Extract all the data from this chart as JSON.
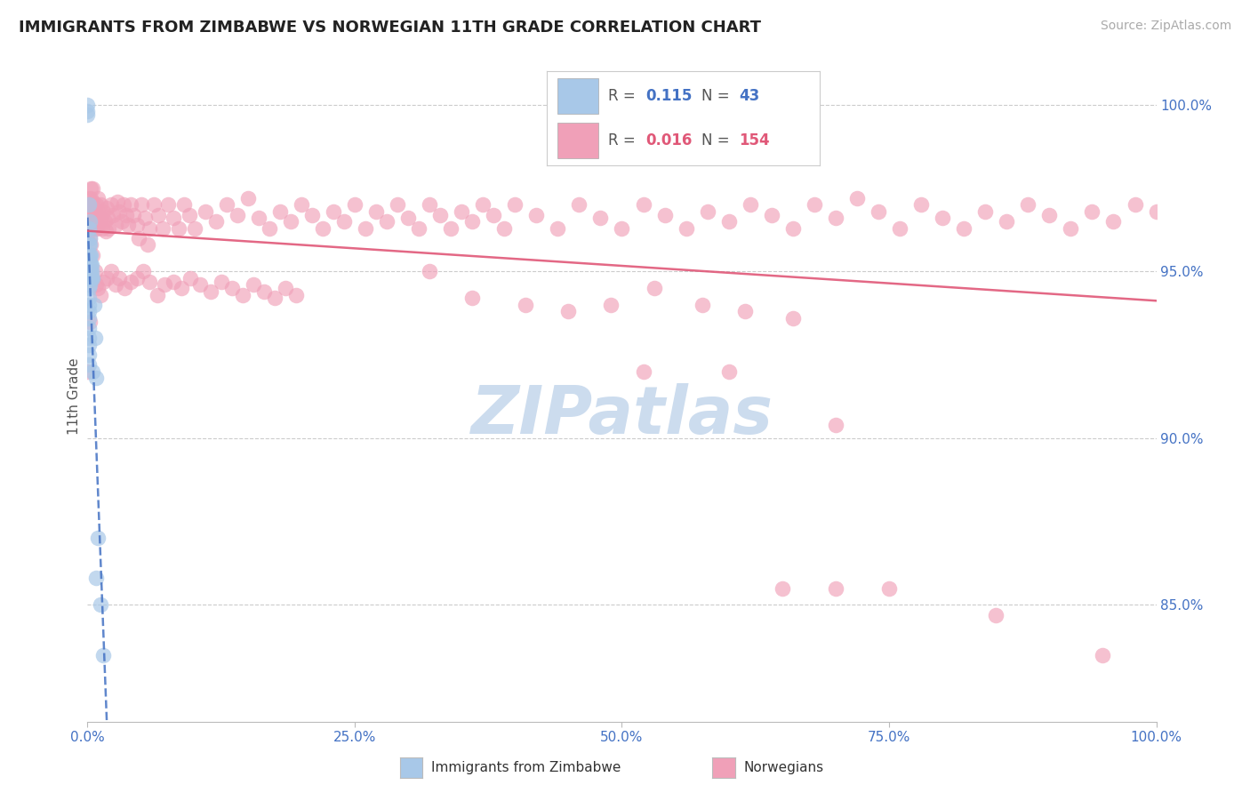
{
  "title": "IMMIGRANTS FROM ZIMBABWE VS NORWEGIAN 11TH GRADE CORRELATION CHART",
  "source": "Source: ZipAtlas.com",
  "ylabel": "11th Grade",
  "blue_r": "0.115",
  "blue_n": "43",
  "pink_r": "0.016",
  "pink_n": "154",
  "legend_label_blue": "Immigrants from Zimbabwe",
  "legend_label_pink": "Norwegians",
  "blue_color": "#a8c8e8",
  "pink_color": "#f0a0b8",
  "blue_line_color": "#4472c4",
  "pink_line_color": "#e05878",
  "blue_r_color": "#4472c4",
  "pink_r_color": "#e05878",
  "right_label_color": "#4472c4",
  "xtick_color": "#4472c4",
  "grid_color": "#cccccc",
  "blue_x": [
    0.0,
    0.0,
    0.0,
    0.001,
    0.001,
    0.001,
    0.001,
    0.001,
    0.001,
    0.001,
    0.001,
    0.001,
    0.001,
    0.001,
    0.001,
    0.001,
    0.001,
    0.001,
    0.001,
    0.002,
    0.002,
    0.002,
    0.002,
    0.002,
    0.002,
    0.002,
    0.002,
    0.003,
    0.003,
    0.003,
    0.003,
    0.004,
    0.004,
    0.004,
    0.005,
    0.005,
    0.006,
    0.007,
    0.008,
    0.008,
    0.01,
    0.012,
    0.015
  ],
  "blue_y": [
    0.997,
    0.998,
    1.0,
    0.97,
    0.963,
    0.958,
    0.955,
    0.952,
    0.948,
    0.945,
    0.942,
    0.94,
    0.938,
    0.936,
    0.933,
    0.93,
    0.928,
    0.925,
    0.922,
    0.965,
    0.96,
    0.958,
    0.955,
    0.953,
    0.95,
    0.948,
    0.946,
    0.955,
    0.952,
    0.95,
    0.948,
    0.952,
    0.95,
    0.948,
    0.948,
    0.92,
    0.94,
    0.93,
    0.918,
    0.858,
    0.87,
    0.85,
    0.835
  ],
  "pink_x": [
    0.0,
    0.0,
    0.001,
    0.001,
    0.001,
    0.002,
    0.002,
    0.002,
    0.003,
    0.003,
    0.003,
    0.004,
    0.004,
    0.004,
    0.005,
    0.005,
    0.005,
    0.006,
    0.007,
    0.007,
    0.008,
    0.008,
    0.009,
    0.01,
    0.01,
    0.011,
    0.012,
    0.013,
    0.014,
    0.015,
    0.016,
    0.017,
    0.018,
    0.019,
    0.02,
    0.022,
    0.024,
    0.026,
    0.028,
    0.03,
    0.032,
    0.034,
    0.036,
    0.038,
    0.04,
    0.043,
    0.046,
    0.05,
    0.054,
    0.058,
    0.062,
    0.066,
    0.07,
    0.075,
    0.08,
    0.085,
    0.09,
    0.095,
    0.1,
    0.11,
    0.12,
    0.13,
    0.14,
    0.15,
    0.16,
    0.17,
    0.18,
    0.19,
    0.2,
    0.21,
    0.22,
    0.23,
    0.24,
    0.25,
    0.26,
    0.27,
    0.28,
    0.29,
    0.3,
    0.31,
    0.32,
    0.33,
    0.34,
    0.35,
    0.36,
    0.37,
    0.38,
    0.39,
    0.4,
    0.42,
    0.44,
    0.46,
    0.48,
    0.5,
    0.52,
    0.54,
    0.56,
    0.58,
    0.6,
    0.62,
    0.64,
    0.66,
    0.68,
    0.7,
    0.72,
    0.74,
    0.76,
    0.78,
    0.8,
    0.82,
    0.84,
    0.86,
    0.88,
    0.9,
    0.92,
    0.94,
    0.96,
    0.98,
    1.0,
    0.003,
    0.005,
    0.007,
    0.008,
    0.01,
    0.012,
    0.015,
    0.018,
    0.022,
    0.026,
    0.03,
    0.035,
    0.04,
    0.046,
    0.052,
    0.058,
    0.065,
    0.072,
    0.08,
    0.088,
    0.096,
    0.105,
    0.115,
    0.125,
    0.135,
    0.145,
    0.155,
    0.165,
    0.175,
    0.185,
    0.195,
    0.048,
    0.056
  ],
  "pink_y": [
    0.96,
    0.955,
    0.972,
    0.968,
    0.965,
    0.97,
    0.965,
    0.96,
    0.975,
    0.972,
    0.968,
    0.97,
    0.966,
    0.963,
    0.975,
    0.971,
    0.968,
    0.965,
    0.968,
    0.963,
    0.97,
    0.966,
    0.963,
    0.972,
    0.968,
    0.965,
    0.97,
    0.966,
    0.963,
    0.968,
    0.965,
    0.962,
    0.969,
    0.966,
    0.963,
    0.97,
    0.967,
    0.964,
    0.971,
    0.968,
    0.965,
    0.97,
    0.967,
    0.964,
    0.97,
    0.967,
    0.964,
    0.97,
    0.966,
    0.963,
    0.97,
    0.967,
    0.963,
    0.97,
    0.966,
    0.963,
    0.97,
    0.967,
    0.963,
    0.968,
    0.965,
    0.97,
    0.967,
    0.972,
    0.966,
    0.963,
    0.968,
    0.965,
    0.97,
    0.967,
    0.963,
    0.968,
    0.965,
    0.97,
    0.963,
    0.968,
    0.965,
    0.97,
    0.966,
    0.963,
    0.97,
    0.967,
    0.963,
    0.968,
    0.965,
    0.97,
    0.967,
    0.963,
    0.97,
    0.967,
    0.963,
    0.97,
    0.966,
    0.963,
    0.97,
    0.967,
    0.963,
    0.968,
    0.965,
    0.97,
    0.967,
    0.963,
    0.97,
    0.966,
    0.972,
    0.968,
    0.963,
    0.97,
    0.966,
    0.963,
    0.968,
    0.965,
    0.97,
    0.967,
    0.963,
    0.968,
    0.965,
    0.97,
    0.968,
    0.958,
    0.955,
    0.95,
    0.946,
    0.945,
    0.943,
    0.947,
    0.948,
    0.95,
    0.946,
    0.948,
    0.945,
    0.947,
    0.948,
    0.95,
    0.947,
    0.943,
    0.946,
    0.947,
    0.945,
    0.948,
    0.946,
    0.944,
    0.947,
    0.945,
    0.943,
    0.946,
    0.944,
    0.942,
    0.945,
    0.943,
    0.96,
    0.958
  ],
  "pink_outlier_x": [
    0.0,
    0.002,
    0.32,
    0.36,
    0.41,
    0.45,
    0.49,
    0.53,
    0.575,
    0.615,
    0.66,
    0.7,
    0.52,
    0.6,
    0.65,
    0.7,
    0.75,
    0.85,
    0.95
  ],
  "pink_outlier_y": [
    0.92,
    0.935,
    0.95,
    0.942,
    0.94,
    0.938,
    0.94,
    0.945,
    0.94,
    0.938,
    0.936,
    0.904,
    0.92,
    0.92,
    0.855,
    0.855,
    0.855,
    0.847,
    0.835
  ],
  "xlim": [
    0.0,
    1.0
  ],
  "ylim": [
    0.815,
    1.01
  ],
  "ytick_values": [
    0.85,
    0.9,
    0.95,
    1.0
  ],
  "ytick_labels": [
    "85.0%",
    "90.0%",
    "95.0%",
    "100.0%"
  ],
  "xtick_values": [
    0.0,
    0.25,
    0.5,
    0.75,
    1.0
  ],
  "xtick_labels": [
    "0.0%",
    "25.0%",
    "50.0%",
    "75.0%",
    "100.0%"
  ],
  "watermark_text": "ZIPatlas",
  "watermark_color": "#ccdcee"
}
